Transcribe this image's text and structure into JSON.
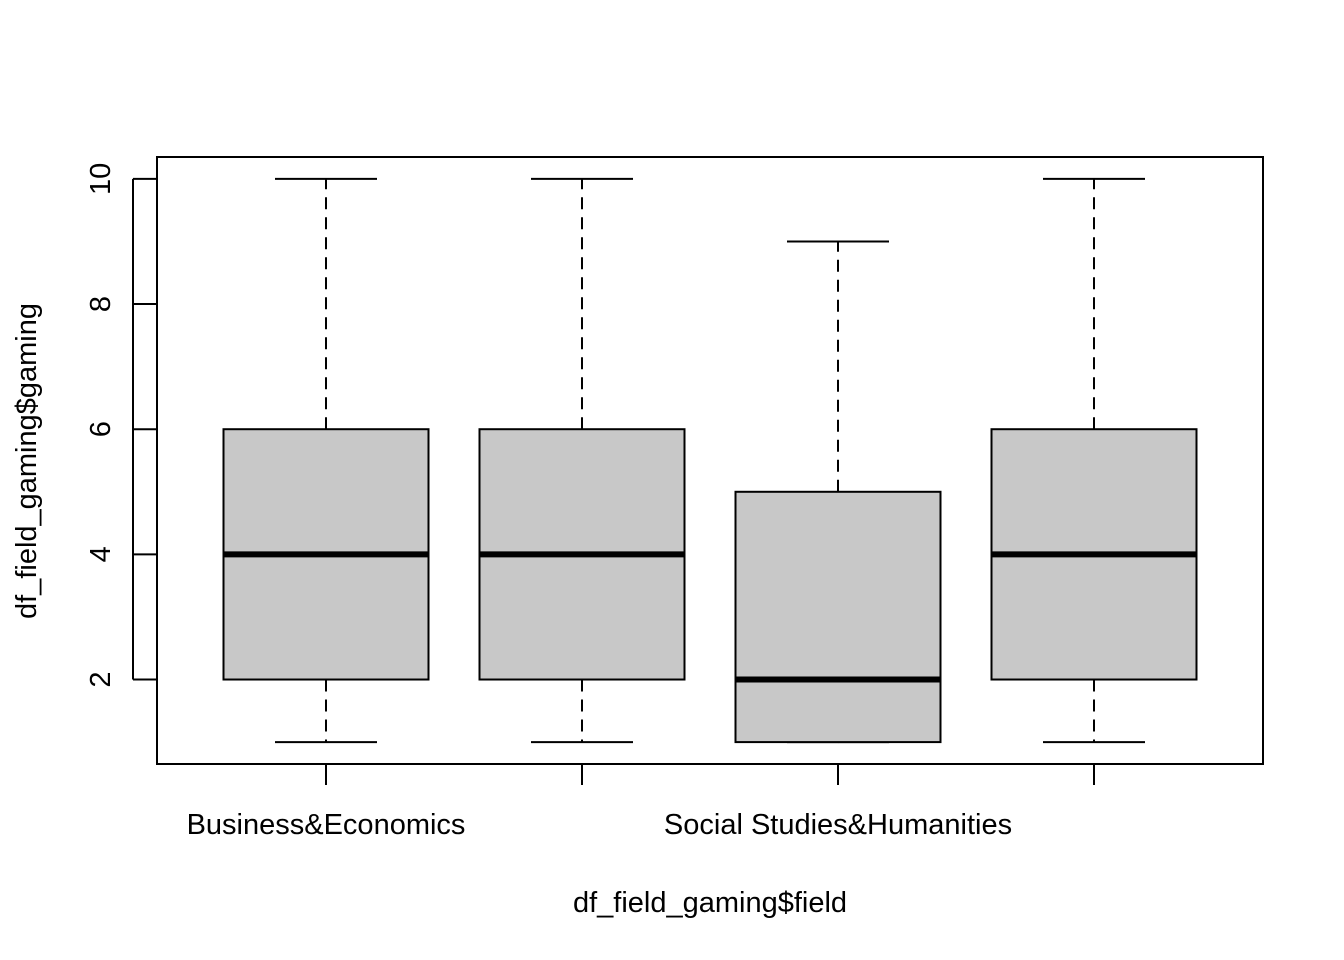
{
  "chart_data": {
    "type": "boxplot",
    "title": "",
    "xlabel": "df_field_gaming$field",
    "ylabel": "df_field_gaming$gaming",
    "ylim": [
      0.65,
      10.35
    ],
    "yticks": [
      2,
      4,
      6,
      8,
      10
    ],
    "grid": false,
    "legend": "none",
    "box_fill": "#c8c8c8",
    "categories": [
      "Business&Economics",
      "",
      "Social Studies&Humanities",
      ""
    ],
    "boxes": [
      {
        "min": 1,
        "q1": 2,
        "median": 4,
        "q3": 6,
        "max": 10
      },
      {
        "min": 1,
        "q1": 2,
        "median": 4,
        "q3": 6,
        "max": 10
      },
      {
        "min": 1,
        "q1": 1,
        "median": 2,
        "q3": 5,
        "max": 9
      },
      {
        "min": 1,
        "q1": 2,
        "median": 4,
        "q3": 6,
        "max": 10
      }
    ]
  }
}
